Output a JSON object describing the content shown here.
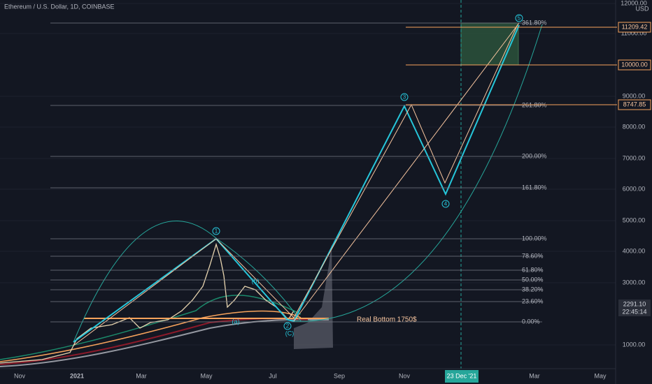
{
  "header": {
    "symbol": "Ethereum / U.S. Dollar, 1D, COINBASE"
  },
  "price_axis": {
    "currency": "USD",
    "labels": [
      "12000.00",
      "11000.00",
      "9000.00",
      "8000.00",
      "7000.00",
      "6000.00",
      "5000.00",
      "4000.00",
      "3000.00",
      "1000.00"
    ]
  },
  "price_tags": [
    "11209.42",
    "10000.00",
    "8747.85"
  ],
  "last_price": {
    "price": "2291.10",
    "countdown": "22:45:14"
  },
  "fib_levels": [
    "361.80%",
    "261.80%",
    "200.00%",
    "161.80%",
    "100.00%",
    "78.60%",
    "61.80%",
    "50.00%",
    "38.20%",
    "23.60%",
    "0.00%"
  ],
  "time_axis": {
    "labels": [
      "Nov",
      "2021",
      "Mar",
      "May",
      "Jul",
      "Sep",
      "Nov",
      "Mar",
      "May"
    ],
    "crosshair_date": "23 Dec '21"
  },
  "waves": [
    "1",
    "2",
    "3",
    "4",
    "5"
  ],
  "subwaves": [
    "(b)",
    "(a)",
    "(C)"
  ],
  "annotation": "Real Bottom 1750$"
}
